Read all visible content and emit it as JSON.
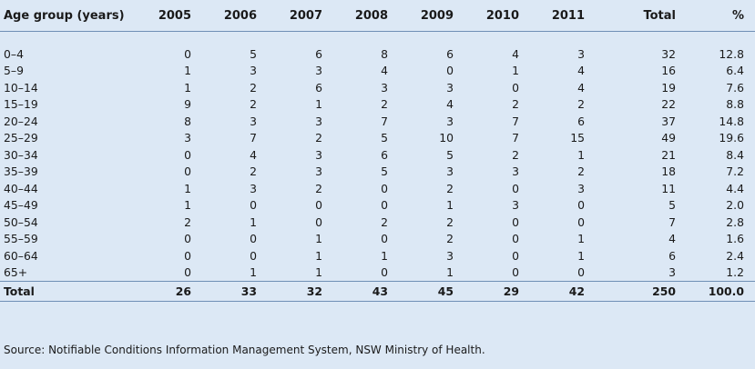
{
  "table": {
    "headers": [
      "Age group (years)",
      "2005",
      "2006",
      "2007",
      "2008",
      "2009",
      "2010",
      "2011",
      "Total",
      "%"
    ],
    "rows": [
      [
        "0–4",
        "0",
        "5",
        "6",
        "8",
        "6",
        "4",
        "3",
        "32",
        "12.8"
      ],
      [
        "5–9",
        "1",
        "3",
        "3",
        "4",
        "0",
        "1",
        "4",
        "16",
        "6.4"
      ],
      [
        "10–14",
        "1",
        "2",
        "6",
        "3",
        "3",
        "0",
        "4",
        "19",
        "7.6"
      ],
      [
        "15–19",
        "9",
        "2",
        "1",
        "2",
        "4",
        "2",
        "2",
        "22",
        "8.8"
      ],
      [
        "20–24",
        "8",
        "3",
        "3",
        "7",
        "3",
        "7",
        "6",
        "37",
        "14.8"
      ],
      [
        "25–29",
        "3",
        "7",
        "2",
        "5",
        "10",
        "7",
        "15",
        "49",
        "19.6"
      ],
      [
        "30–34",
        "0",
        "4",
        "3",
        "6",
        "5",
        "2",
        "1",
        "21",
        "8.4"
      ],
      [
        "35–39",
        "0",
        "2",
        "3",
        "5",
        "3",
        "3",
        "2",
        "18",
        "7.2"
      ],
      [
        "40–44",
        "1",
        "3",
        "2",
        "0",
        "2",
        "0",
        "3",
        "11",
        "4.4"
      ],
      [
        "45–49",
        "1",
        "0",
        "0",
        "0",
        "1",
        "3",
        "0",
        "5",
        "2.0"
      ],
      [
        "50–54",
        "2",
        "1",
        "0",
        "2",
        "2",
        "0",
        "0",
        "7",
        "2.8"
      ],
      [
        "55–59",
        "0",
        "0",
        "1",
        "0",
        "2",
        "0",
        "1",
        "4",
        "1.6"
      ],
      [
        "60–64",
        "0",
        "0",
        "1",
        "1",
        "3",
        "0",
        "1",
        "6",
        "2.4"
      ],
      [
        "65+",
        "0",
        "1",
        "1",
        "0",
        "1",
        "0",
        "0",
        "3",
        "1.2"
      ]
    ],
    "total_row": [
      "Total",
      "26",
      "33",
      "32",
      "43",
      "45",
      "29",
      "42",
      "250",
      "100.0"
    ]
  },
  "source": "Source: Notifiable Conditions Information Management System, NSW Ministry of Health.",
  "colors": {
    "background": "#dce8f5",
    "rule": "#6f8fb5"
  }
}
